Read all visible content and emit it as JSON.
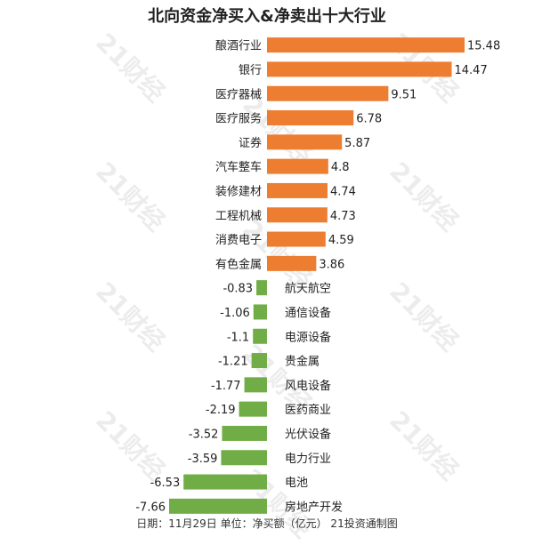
{
  "title": "北向资金净买入&净卖出十大行业",
  "footer": "日期：11月29日 单位：净买额（亿元） 21投资通制图",
  "watermark": "21财经",
  "colors": {
    "positive": "#ED7D31",
    "negative": "#70AD47"
  },
  "chart_data": {
    "type": "bar",
    "orientation": "horizontal",
    "categories": [
      "酿酒行业",
      "银行",
      "医疗器械",
      "医疗服务",
      "证券",
      "汽车整车",
      "装修建材",
      "工程机械",
      "消费电子",
      "有色金属",
      "航天航空",
      "通信设备",
      "电源设备",
      "贵金属",
      "风电设备",
      "医药商业",
      "光伏设备",
      "电力行业",
      "电池",
      "房地产开发"
    ],
    "values": [
      15.48,
      14.47,
      9.51,
      6.78,
      5.87,
      4.8,
      4.74,
      4.73,
      4.59,
      3.86,
      -0.83,
      -1.06,
      -1.1,
      -1.21,
      -1.77,
      -2.19,
      -3.52,
      -3.59,
      -6.53,
      -7.66
    ],
    "value_labels": [
      "15.48",
      "14.47",
      "9.51",
      "6.78",
      "5.87",
      "4.8",
      "4.74",
      "4.73",
      "4.59",
      "3.86",
      "-0.83",
      "-1.06",
      "-1.1",
      "-1.21",
      "-1.77",
      "-2.19",
      "-3.52",
      "-3.59",
      "-6.53",
      "-7.66"
    ],
    "title": "北向资金净买入&净卖出十大行业",
    "xlabel": "",
    "ylabel": "",
    "xlim": [
      -7.66,
      15.48
    ],
    "grid": false,
    "legend": "none"
  }
}
